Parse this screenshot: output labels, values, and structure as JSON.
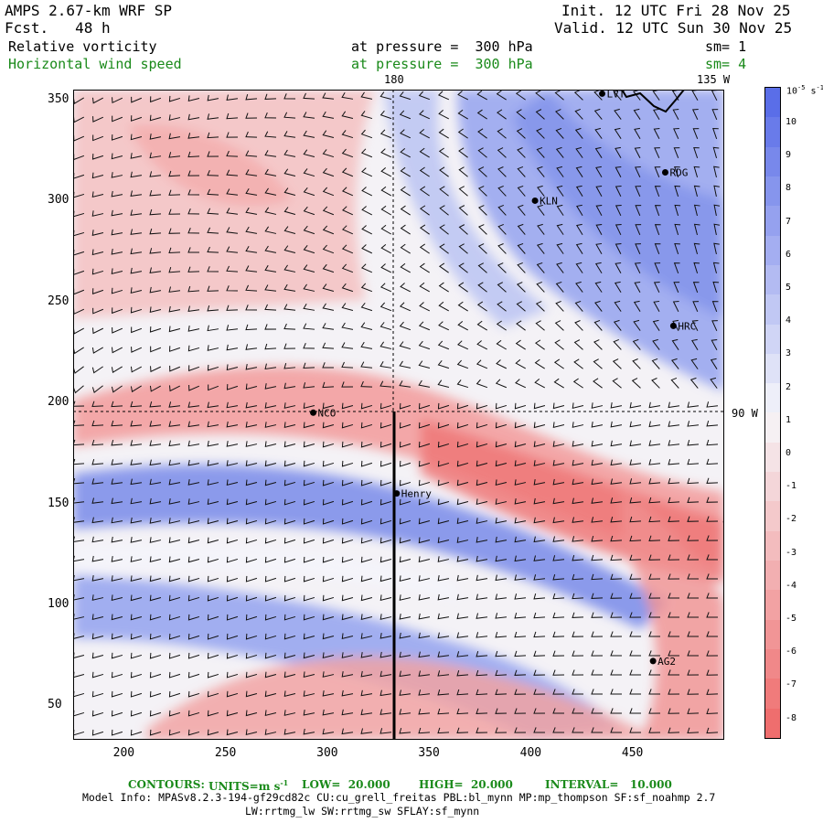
{
  "header": {
    "model_title": "AMPS 2.67-km WRF SP",
    "forecast": "Fcst.   48 h",
    "init": "Init. 12 UTC Fri 28 Nov 25",
    "valid": "Valid. 12 UTC Sun 30 Nov 25",
    "field1": "Relative vorticity",
    "field1_level": "at pressure =  300 hPa",
    "field1_sm": "sm= 1",
    "field2": "Horizontal wind speed",
    "field2_level": "at pressure =  300 hPa",
    "field2_sm": "sm= 4"
  },
  "map_labels": {
    "lon_180": "180",
    "lon_135w": "135 W",
    "lon_90w": "90 W"
  },
  "stations": [
    {
      "name": "LVT",
      "x": 435,
      "y": 353
    },
    {
      "name": "RDG",
      "x": 466,
      "y": 314
    },
    {
      "name": "KLN",
      "x": 402,
      "y": 300
    },
    {
      "name": "HRC",
      "x": 470,
      "y": 238
    },
    {
      "name": "NCO",
      "x": 293,
      "y": 195
    },
    {
      "name": "Henry",
      "x": 334,
      "y": 155
    },
    {
      "name": "AG2",
      "x": 460,
      "y": 72
    },
    {
      "name": "",
      "x": 496,
      "y": 141
    }
  ],
  "axes": {
    "x_ticks": [
      "200",
      "250",
      "300",
      "350",
      "400",
      "450"
    ],
    "x_values": [
      200,
      250,
      300,
      350,
      400,
      450
    ],
    "y_ticks": [
      "350",
      "300",
      "250",
      "200",
      "150",
      "100",
      "50"
    ],
    "y_values": [
      350,
      300,
      250,
      200,
      150,
      100,
      50
    ],
    "xlim": [
      175,
      495
    ],
    "ylim": [
      33,
      355
    ]
  },
  "colorbar": {
    "unit_label": "10",
    "unit_exp": "-5",
    "unit_suffix": "s",
    "unit_suffix_exp": "-1",
    "labels": [
      "10",
      "9",
      "8",
      "7",
      "6",
      "5",
      "4",
      "3",
      "2",
      "1",
      "0",
      "-1",
      "-2",
      "-3",
      "-4",
      "-5",
      "-6",
      "-7",
      "-8"
    ],
    "colors": {
      "positive": "#5a6ee8",
      "zero": "#f6f6fb",
      "negative": "#ef6e6e"
    }
  },
  "footer": {
    "contours_label": "CONTOURS:",
    "units_label": "UNITS=m s",
    "units_exp": "-1",
    "low": "LOW=  20.000",
    "high": "HIGH=  20.000",
    "interval": "INTERVAL=   10.000",
    "info_line1": "Model Info: MPASv8.2.3-194-gf29cd82c CU:cu_grell_freitas PBL:bl_mynn MP:mp_thompson SF:sf_noahmp 2.7",
    "info_line2": "LW:rrtmg_lw SW:rrtmg_sw SFLAY:sf_mynn"
  }
}
